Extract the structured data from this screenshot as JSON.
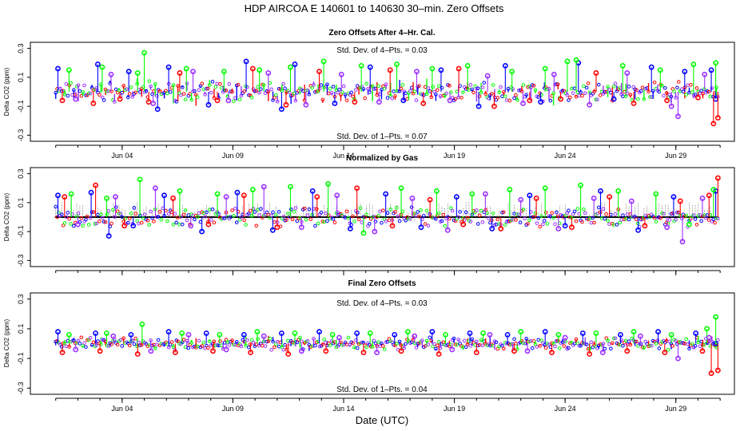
{
  "figure": {
    "title": "HDP    AIRCOA E    140601 to 140630    30–min. Zero Offsets",
    "xlabel": "Date (UTC)"
  },
  "colors": {
    "series_blue": "#0000ff",
    "series_red": "#ff0000",
    "series_green": "#00ff00",
    "series_purple": "#9b30ff",
    "series_black": "#000000"
  },
  "chart_data": [
    {
      "type": "scatter",
      "title": "Zero Offsets After 4–Hr. Cal.",
      "ylabel": "Delta CO2 (ppm)",
      "xlim": [
        0.0,
        31.5
      ],
      "ylim": [
        -0.32,
        0.32
      ],
      "xticks": [
        4,
        9,
        14,
        19,
        24,
        29
      ],
      "xtick_labels": [
        "Jun 04",
        "Jun 09",
        "Jun 14",
        "Jun 19",
        "Jun 24",
        "Jun 29"
      ],
      "yticks": [
        -0.3,
        -0.1,
        0.1,
        0.3
      ],
      "ytick_labels": [
        "-0.3",
        "-0.1",
        "0.1",
        "0.3"
      ],
      "annotations": [
        "Std. Dev. of 4–Pts. =  0.03",
        "Std. Dev. of 1–Pts. =  0.07"
      ],
      "series": [
        {
          "color": "#0000ff",
          "x": [
            1.1,
            2.9,
            4.3,
            5.6,
            6.1,
            7.9,
            9.6,
            11.2,
            11.8,
            13.6,
            15.2,
            16.7,
            18.4,
            20.1,
            21.3,
            22.9,
            24.6,
            26.2,
            27.9,
            29.4,
            30.6,
            30.8
          ],
          "y": [
            0.16,
            0.19,
            0.14,
            -0.12,
            0.17,
            -0.09,
            0.21,
            -0.12,
            0.19,
            -0.08,
            0.17,
            -0.06,
            0.15,
            -0.1,
            0.18,
            -0.07,
            0.2,
            -0.05,
            0.17,
            0.14,
            0.15,
            -0.05
          ]
        },
        {
          "color": "#ff0000",
          "x": [
            1.3,
            2.7,
            3.9,
            5.2,
            6.6,
            8.3,
            9.9,
            11.4,
            12.9,
            14.5,
            16.1,
            17.6,
            19.2,
            20.8,
            22.4,
            23.8,
            25.4,
            27.1,
            28.6,
            30.0,
            30.7,
            30.9
          ],
          "y": [
            -0.06,
            -0.08,
            -0.05,
            -0.07,
            0.13,
            -0.06,
            0.16,
            -0.09,
            0.14,
            -0.07,
            0.15,
            -0.08,
            0.16,
            -0.1,
            -0.06,
            -0.05,
            0.13,
            -0.08,
            -0.06,
            -0.04,
            -0.22,
            -0.18
          ]
        },
        {
          "color": "#00ff00",
          "x": [
            1.6,
            3.1,
            4.7,
            5.0,
            6.9,
            8.6,
            10.2,
            11.6,
            13.1,
            14.8,
            16.4,
            18.0,
            19.6,
            21.6,
            23.1,
            24.1,
            24.5,
            26.6,
            28.3,
            29.8,
            30.8
          ],
          "y": [
            0.15,
            0.17,
            0.13,
            0.27,
            0.16,
            0.14,
            0.15,
            0.17,
            0.21,
            0.18,
            0.19,
            0.16,
            0.18,
            0.14,
            0.16,
            0.21,
            0.22,
            0.18,
            0.15,
            0.19,
            0.2
          ]
        },
        {
          "color": "#9b30ff",
          "x": [
            1.9,
            3.5,
            5.4,
            7.2,
            8.8,
            10.6,
            12.3,
            13.9,
            15.6,
            17.3,
            18.8,
            20.5,
            22.1,
            23.5,
            25.1,
            26.8,
            28.8,
            29.1,
            30.3
          ],
          "y": [
            -0.05,
            0.12,
            -0.08,
            0.14,
            -0.06,
            0.13,
            -0.09,
            0.12,
            -0.07,
            0.14,
            -0.06,
            0.11,
            -0.08,
            0.12,
            -0.09,
            0.13,
            -0.1,
            -0.17,
            0.12
          ]
        }
      ]
    },
    {
      "type": "scatter",
      "title": "Normalized by Gas",
      "ylabel": "Delta CO2 (ppm)",
      "xlim": [
        0.0,
        31.5
      ],
      "ylim": [
        -0.32,
        0.32
      ],
      "xticks": [
        4,
        9,
        14,
        19,
        24,
        29
      ],
      "xtick_labels": [
        "Jun 04",
        "Jun 09",
        "Jun 14",
        "Jun 19",
        "Jun 24",
        "Jun 29"
      ],
      "yticks": [
        -0.3,
        -0.1,
        0.1,
        0.3
      ],
      "ytick_labels": [
        "-0.3",
        "-0.1",
        "0.1",
        "0.3"
      ],
      "annotations": [],
      "series": [
        {
          "color": "#0000ff",
          "x": [
            1.1,
            2.6,
            3.4,
            4.5,
            5.9,
            7.6,
            9.2,
            10.8,
            12.6,
            14.3,
            15.9,
            17.5,
            19.1,
            20.7,
            22.4,
            24.0,
            25.6,
            27.3,
            28.9,
            30.8
          ],
          "y": [
            0.15,
            0.17,
            -0.13,
            -0.06,
            0.15,
            -0.1,
            0.17,
            -0.09,
            0.18,
            -0.08,
            0.16,
            -0.07,
            0.14,
            -0.08,
            0.15,
            -0.06,
            0.18,
            -0.09,
            0.14,
            0.18
          ]
        },
        {
          "color": "#ff0000",
          "x": [
            1.4,
            2.8,
            4.1,
            6.3,
            7.9,
            9.5,
            11.0,
            12.8,
            14.6,
            16.2,
            17.9,
            19.4,
            21.1,
            22.7,
            24.3,
            26.0,
            27.6,
            29.2,
            30.5,
            30.9
          ],
          "y": [
            0.14,
            0.22,
            -0.06,
            0.13,
            -0.05,
            0.15,
            -0.07,
            0.14,
            0.2,
            -0.06,
            0.12,
            -0.05,
            -0.08,
            0.13,
            -0.07,
            0.14,
            -0.06,
            0.11,
            0.15,
            0.27
          ]
        },
        {
          "color": "#00ff00",
          "x": [
            1.7,
            3.3,
            4.8,
            6.6,
            8.3,
            9.9,
            11.6,
            13.3,
            14.9,
            16.6,
            18.2,
            19.8,
            21.5,
            23.1,
            24.7,
            26.4,
            28.1,
            29.6,
            30.7
          ],
          "y": [
            0.16,
            0.13,
            0.26,
            0.18,
            0.16,
            0.19,
            0.21,
            0.23,
            -0.11,
            0.2,
            0.18,
            0.16,
            0.19,
            0.2,
            0.22,
            0.18,
            0.16,
            -0.05,
            0.19
          ]
        },
        {
          "color": "#9b30ff",
          "x": [
            2.0,
            3.7,
            5.5,
            7.1,
            8.7,
            10.4,
            12.1,
            13.7,
            15.4,
            17.1,
            18.7,
            20.4,
            22.0,
            23.7,
            25.3,
            27.0,
            28.6,
            29.3,
            30.2
          ],
          "y": [
            -0.05,
            0.14,
            0.2,
            -0.06,
            0.14,
            0.21,
            -0.07,
            0.15,
            -0.1,
            0.13,
            -0.09,
            0.16,
            0.12,
            -0.08,
            0.13,
            0.11,
            -0.07,
            -0.17,
            0.13
          ]
        }
      ],
      "baseline": {
        "color": "#000000",
        "y": 0.0
      }
    },
    {
      "type": "scatter",
      "title": "Final Zero Offsets",
      "ylabel": "Delta CO2 (ppm)",
      "xlim": [
        0.0,
        31.5
      ],
      "ylim": [
        -0.32,
        0.32
      ],
      "xticks": [
        4,
        9,
        14,
        19,
        24,
        29
      ],
      "xtick_labels": [
        "Jun 04",
        "Jun 09",
        "Jun 14",
        "Jun 19",
        "Jun 24",
        "Jun 29"
      ],
      "yticks": [
        -0.3,
        -0.1,
        0.1,
        0.3
      ],
      "ytick_labels": [
        "-0.3",
        "-0.1",
        "0.1",
        "0.3"
      ],
      "annotations": [
        "Std. Dev. of 4–Pts. =  0.03",
        "Std. Dev. of 1–Pts. =  0.04"
      ],
      "series": [
        {
          "color": "#0000ff",
          "x": [
            1.1,
            2.8,
            4.4,
            6.1,
            7.8,
            9.5,
            11.2,
            12.9,
            14.6,
            16.3,
            18.0,
            19.7,
            21.4,
            23.1,
            24.8,
            26.5,
            28.2,
            29.9,
            30.8
          ],
          "y": [
            0.08,
            0.07,
            0.06,
            0.08,
            0.07,
            0.06,
            0.07,
            0.08,
            0.07,
            0.06,
            0.08,
            0.07,
            0.06,
            0.08,
            0.07,
            0.06,
            0.08,
            0.07,
            0.0
          ]
        },
        {
          "color": "#ff0000",
          "x": [
            1.3,
            3.0,
            4.7,
            6.4,
            8.1,
            9.8,
            11.5,
            13.2,
            14.9,
            16.6,
            18.3,
            20.0,
            21.7,
            23.4,
            25.1,
            26.8,
            28.5,
            30.2,
            30.6,
            30.9
          ],
          "y": [
            -0.06,
            -0.05,
            -0.07,
            -0.06,
            -0.05,
            -0.06,
            -0.07,
            -0.05,
            -0.06,
            -0.05,
            -0.07,
            -0.06,
            -0.05,
            -0.06,
            -0.07,
            -0.05,
            -0.06,
            -0.05,
            -0.2,
            -0.18
          ]
        },
        {
          "color": "#00ff00",
          "x": [
            1.6,
            3.3,
            4.9,
            6.7,
            8.4,
            10.1,
            11.8,
            13.5,
            15.2,
            16.9,
            18.6,
            20.3,
            22.0,
            23.7,
            25.4,
            27.1,
            28.8,
            30.4,
            30.8
          ],
          "y": [
            0.06,
            0.07,
            0.13,
            0.07,
            0.06,
            0.08,
            0.07,
            0.06,
            0.07,
            0.08,
            0.06,
            0.07,
            0.08,
            0.06,
            0.07,
            0.08,
            0.06,
            0.1,
            0.18
          ]
        },
        {
          "color": "#9b30ff",
          "x": [
            1.9,
            3.6,
            5.3,
            7.0,
            8.7,
            10.4,
            12.1,
            13.8,
            15.5,
            17.2,
            18.9,
            20.6,
            22.3,
            24.0,
            25.7,
            27.4,
            29.1,
            30.5
          ],
          "y": [
            -0.04,
            0.05,
            -0.05,
            0.06,
            -0.04,
            0.05,
            -0.05,
            0.04,
            -0.06,
            0.05,
            -0.04,
            0.06,
            -0.05,
            0.04,
            -0.06,
            0.05,
            -0.1,
            0.04
          ]
        }
      ]
    }
  ]
}
